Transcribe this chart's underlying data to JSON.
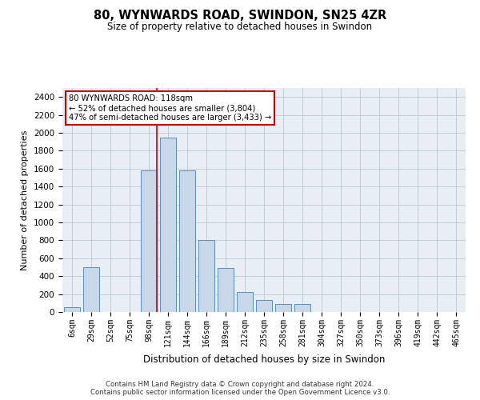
{
  "title": "80, WYNWARDS ROAD, SWINDON, SN25 4ZR",
  "subtitle": "Size of property relative to detached houses in Swindon",
  "xlabel": "Distribution of detached houses by size in Swindon",
  "ylabel": "Number of detached properties",
  "footer_line1": "Contains HM Land Registry data © Crown copyright and database right 2024.",
  "footer_line2": "Contains public sector information licensed under the Open Government Licence v3.0.",
  "bar_color": "#c8d8e8",
  "bar_edge_color": "#5b8db8",
  "background_color": "#e8eef4",
  "grid_color": "#c0c8d0",
  "annotation_box_color": "#cc0000",
  "property_line_color": "#cc0000",
  "annotation_text_line1": "80 WYNWARDS ROAD: 118sqm",
  "annotation_text_line2": "← 52% of detached houses are smaller (3,804)",
  "annotation_text_line3": "47% of semi-detached houses are larger (3,433) →",
  "categories": [
    "6sqm",
    "29sqm",
    "52sqm",
    "75sqm",
    "98sqm",
    "121sqm",
    "144sqm",
    "166sqm",
    "189sqm",
    "212sqm",
    "235sqm",
    "258sqm",
    "281sqm",
    "304sqm",
    "327sqm",
    "350sqm",
    "373sqm",
    "396sqm",
    "419sqm",
    "442sqm",
    "465sqm"
  ],
  "bar_heights": [
    50,
    500,
    0,
    0,
    1580,
    1950,
    1580,
    800,
    490,
    220,
    130,
    90,
    90,
    0,
    0,
    0,
    0,
    0,
    0,
    0,
    0
  ],
  "ylim": [
    0,
    2500
  ],
  "yticks": [
    0,
    200,
    400,
    600,
    800,
    1000,
    1200,
    1400,
    1600,
    1800,
    2000,
    2200,
    2400
  ],
  "property_line_x": 4.43
}
